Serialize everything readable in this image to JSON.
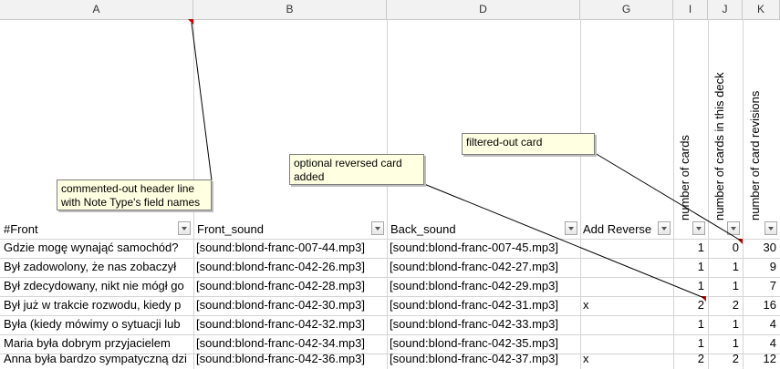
{
  "columns": [
    "A",
    "B",
    "D",
    "G",
    "I",
    "J",
    "K"
  ],
  "header_row": {
    "front": "#Front",
    "front_sound": "Front_sound",
    "back_sound": "Back_sound",
    "add_reverse": "Add Reverse",
    "num_cards": "number of cards",
    "num_cards_deck": "number of cards in this deck",
    "num_revisions": "number of card revisions"
  },
  "rows": [
    {
      "front": "Gdzie mogę wynająć samochód?",
      "front_sound": "[sound:blond-franc-007-44.mp3]",
      "back_sound": "[sound:blond-franc-007-45.mp3]",
      "reverse": "",
      "cards": "1",
      "deck": "0",
      "revisions": "30"
    },
    {
      "front": "Był zadowolony, że nas zobaczył",
      "front_sound": "[sound:blond-franc-042-26.mp3]",
      "back_sound": "[sound:blond-franc-042-27.mp3]",
      "reverse": "",
      "cards": "1",
      "deck": "1",
      "revisions": "9"
    },
    {
      "front": "Był zdecydowany, nikt nie mógł go",
      "front_sound": "[sound:blond-franc-042-28.mp3]",
      "back_sound": "[sound:blond-franc-042-29.mp3]",
      "reverse": "",
      "cards": "1",
      "deck": "1",
      "revisions": "7"
    },
    {
      "front": "Był już w trakcie rozwodu, kiedy p",
      "front_sound": "[sound:blond-franc-042-30.mp3]",
      "back_sound": "[sound:blond-franc-042-31.mp3]",
      "reverse": "x",
      "cards": "2",
      "deck": "2",
      "revisions": "16"
    },
    {
      "front": "Była (kiedy mówimy o sytuacji lub",
      "front_sound": "[sound:blond-franc-042-32.mp3]",
      "back_sound": "[sound:blond-franc-042-33.mp3]",
      "reverse": "",
      "cards": "1",
      "deck": "1",
      "revisions": "4"
    },
    {
      "front": "Maria była dobrym przyjacielem",
      "front_sound": "[sound:blond-franc-042-34.mp3]",
      "back_sound": "[sound:blond-franc-042-35.mp3]",
      "reverse": "",
      "cards": "1",
      "deck": "1",
      "revisions": "4"
    },
    {
      "front": "Anna była bardzo sympatyczną dzi",
      "front_sound": "[sound:blond-franc-042-36.mp3]",
      "back_sound": "[sound:blond-franc-042-37.mp3]",
      "reverse": "x",
      "cards": "2",
      "deck": "2",
      "revisions": "12"
    }
  ],
  "comments": {
    "header_line_1": "commented-out header line",
    "header_line_2": "with Note Type's field names",
    "reversed_1": "optional reversed card",
    "reversed_2": "added",
    "filtered": "filtered-out card"
  }
}
